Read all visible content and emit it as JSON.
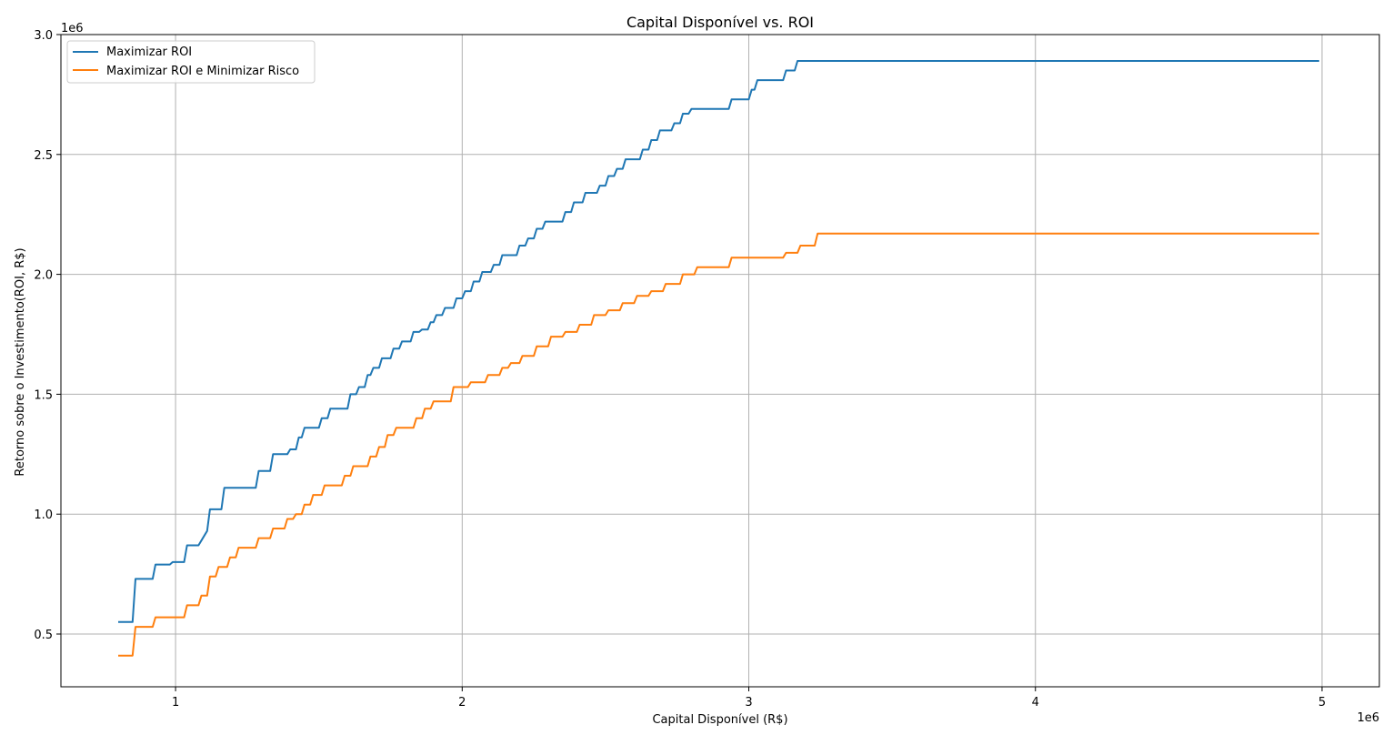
{
  "chart_data": {
    "type": "line",
    "title": "Capital Disponível vs. ROI",
    "xlabel": "Capital Disponível (R$)",
    "ylabel": "Retorno sobre o Investimento(ROI, R$)",
    "x_offset_label": "1e6",
    "y_offset_label": "1e6",
    "xlim": [
      0.6,
      5.2
    ],
    "ylim": [
      0.28,
      3.0
    ],
    "xticks": [
      1,
      2,
      3,
      4,
      5
    ],
    "xtick_labels": [
      "1",
      "2",
      "3",
      "4",
      "5"
    ],
    "yticks": [
      0.5,
      1.0,
      1.5,
      2.0,
      2.5,
      3.0
    ],
    "ytick_labels": [
      "0.5",
      "1.0",
      "1.5",
      "2.0",
      "2.5",
      "3.0"
    ],
    "grid": true,
    "legend_position": "top-left",
    "colors": [
      "#1f77b4",
      "#ff7f0e"
    ],
    "series": [
      {
        "name": "Maximizar ROI",
        "x": [
          0.8,
          0.85,
          0.86,
          0.87,
          0.92,
          0.93,
          0.98,
          0.99,
          1.03,
          1.04,
          1.08,
          1.09,
          1.11,
          1.12,
          1.16,
          1.17,
          1.28,
          1.29,
          1.33,
          1.34,
          1.39,
          1.4,
          1.42,
          1.43,
          1.44,
          1.45,
          1.5,
          1.51,
          1.53,
          1.54,
          1.6,
          1.61,
          1.63,
          1.64,
          1.66,
          1.67,
          1.68,
          1.69,
          1.71,
          1.72,
          1.75,
          1.76,
          1.78,
          1.79,
          1.82,
          1.83,
          1.85,
          1.86,
          1.88,
          1.89,
          1.9,
          1.91,
          1.93,
          1.94,
          1.97,
          1.98,
          2.0,
          2.01,
          2.03,
          2.04,
          2.06,
          2.07,
          2.1,
          2.11,
          2.13,
          2.14,
          2.19,
          2.2,
          2.22,
          2.23,
          2.25,
          2.26,
          2.28,
          2.29,
          2.35,
          2.36,
          2.38,
          2.39,
          2.42,
          2.43,
          2.47,
          2.48,
          2.5,
          2.51,
          2.53,
          2.54,
          2.56,
          2.57,
          2.62,
          2.63,
          2.65,
          2.66,
          2.68,
          2.69,
          2.73,
          2.74,
          2.76,
          2.77,
          2.79,
          2.8,
          2.93,
          2.94,
          3.0,
          3.01,
          3.02,
          3.03,
          3.12,
          3.13,
          3.16,
          3.17,
          3.19,
          3.2,
          3.3,
          3.31,
          4.99
        ],
        "y": [
          0.55,
          0.55,
          0.73,
          0.73,
          0.73,
          0.79,
          0.79,
          0.8,
          0.8,
          0.87,
          0.87,
          0.89,
          0.93,
          1.02,
          1.02,
          1.11,
          1.11,
          1.18,
          1.18,
          1.25,
          1.25,
          1.27,
          1.27,
          1.32,
          1.32,
          1.36,
          1.36,
          1.4,
          1.4,
          1.44,
          1.44,
          1.5,
          1.5,
          1.53,
          1.53,
          1.58,
          1.58,
          1.61,
          1.61,
          1.65,
          1.65,
          1.69,
          1.69,
          1.72,
          1.72,
          1.76,
          1.76,
          1.77,
          1.77,
          1.8,
          1.8,
          1.83,
          1.83,
          1.86,
          1.86,
          1.9,
          1.9,
          1.93,
          1.93,
          1.97,
          1.97,
          2.01,
          2.01,
          2.04,
          2.04,
          2.08,
          2.08,
          2.12,
          2.12,
          2.15,
          2.15,
          2.19,
          2.19,
          2.22,
          2.22,
          2.26,
          2.26,
          2.3,
          2.3,
          2.34,
          2.34,
          2.37,
          2.37,
          2.41,
          2.41,
          2.44,
          2.44,
          2.48,
          2.48,
          2.52,
          2.52,
          2.56,
          2.56,
          2.6,
          2.6,
          2.63,
          2.63,
          2.67,
          2.67,
          2.69,
          2.69,
          2.73,
          2.73,
          2.77,
          2.77,
          2.81,
          2.81,
          2.85,
          2.85,
          2.89,
          2.89,
          2.89,
          2.89,
          2.89,
          2.89
        ],
        "values_note_unused": ""
      },
      {
        "name": "Maximizar ROI e Minimizar Risco",
        "x": [
          0.8,
          0.85,
          0.86,
          0.87,
          0.92,
          0.93,
          1.03,
          1.04,
          1.08,
          1.09,
          1.11,
          1.12,
          1.14,
          1.15,
          1.18,
          1.19,
          1.21,
          1.22,
          1.28,
          1.29,
          1.33,
          1.34,
          1.38,
          1.39,
          1.41,
          1.42,
          1.44,
          1.45,
          1.47,
          1.48,
          1.51,
          1.52,
          1.58,
          1.59,
          1.61,
          1.62,
          1.67,
          1.68,
          1.7,
          1.71,
          1.73,
          1.74,
          1.76,
          1.77,
          1.83,
          1.84,
          1.86,
          1.87,
          1.89,
          1.9,
          1.96,
          1.97,
          2.02,
          2.03,
          2.08,
          2.09,
          2.13,
          2.14,
          2.16,
          2.17,
          2.2,
          2.21,
          2.25,
          2.26,
          2.3,
          2.31,
          2.35,
          2.36,
          2.4,
          2.41,
          2.45,
          2.46,
          2.5,
          2.51,
          2.55,
          2.56,
          2.6,
          2.61,
          2.65,
          2.66,
          2.7,
          2.71,
          2.76,
          2.77,
          2.81,
          2.82,
          2.93,
          2.94,
          3.12,
          3.13,
          3.17,
          3.18,
          3.23,
          3.24,
          3.29,
          3.3,
          4.99
        ],
        "y": [
          0.41,
          0.41,
          0.53,
          0.53,
          0.53,
          0.57,
          0.57,
          0.62,
          0.62,
          0.66,
          0.66,
          0.74,
          0.74,
          0.78,
          0.78,
          0.82,
          0.82,
          0.86,
          0.86,
          0.9,
          0.9,
          0.94,
          0.94,
          0.98,
          0.98,
          1.0,
          1.0,
          1.04,
          1.04,
          1.08,
          1.08,
          1.12,
          1.12,
          1.16,
          1.16,
          1.2,
          1.2,
          1.24,
          1.24,
          1.28,
          1.28,
          1.33,
          1.33,
          1.36,
          1.36,
          1.4,
          1.4,
          1.44,
          1.44,
          1.47,
          1.47,
          1.53,
          1.53,
          1.55,
          1.55,
          1.58,
          1.58,
          1.61,
          1.61,
          1.63,
          1.63,
          1.66,
          1.66,
          1.7,
          1.7,
          1.74,
          1.74,
          1.76,
          1.76,
          1.79,
          1.79,
          1.83,
          1.83,
          1.85,
          1.85,
          1.88,
          1.88,
          1.91,
          1.91,
          1.93,
          1.93,
          1.96,
          1.96,
          2.0,
          2.0,
          2.03,
          2.03,
          2.07,
          2.07,
          2.09,
          2.09,
          2.12,
          2.12,
          2.17,
          2.17,
          2.17,
          2.17
        ]
      }
    ]
  }
}
